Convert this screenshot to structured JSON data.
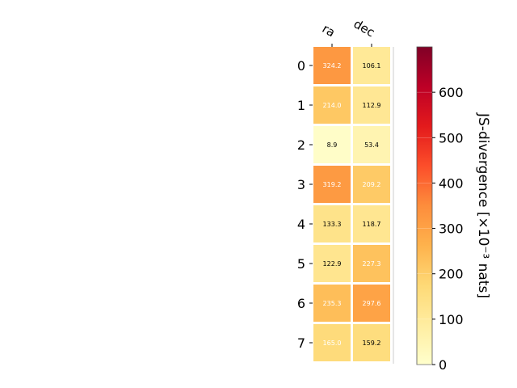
{
  "chart_data": {
    "type": "heatmap",
    "columns": [
      "ra",
      "dec"
    ],
    "rows": [
      "0",
      "1",
      "2",
      "3",
      "4",
      "5",
      "6",
      "7"
    ],
    "values": [
      [
        324.2,
        106.1
      ],
      [
        214.0,
        112.9
      ],
      [
        8.9,
        53.4
      ],
      [
        319.2,
        209.2
      ],
      [
        133.3,
        118.7
      ],
      [
        122.9,
        227.3
      ],
      [
        235.3,
        297.6
      ],
      [
        165.0,
        159.2
      ]
    ],
    "value_labels": [
      [
        "324.2",
        "106.1"
      ],
      [
        "214.0",
        "112.9"
      ],
      [
        "8.9",
        "53.4"
      ],
      [
        "319.2",
        "209.2"
      ],
      [
        "133.3",
        "118.7"
      ],
      [
        "122.9",
        "227.3"
      ],
      [
        "235.3",
        "297.6"
      ],
      [
        "165.0",
        "159.2"
      ]
    ],
    "colorbar": {
      "label": "JS-divergence [×10⁻³ nats]",
      "range": [
        0,
        700
      ],
      "ticks": [
        0,
        100,
        200,
        300,
        400,
        500,
        600
      ],
      "tick_labels": [
        "0",
        "100",
        "200",
        "300",
        "400",
        "500",
        "600"
      ],
      "colormap": "YlOrRd"
    }
  }
}
